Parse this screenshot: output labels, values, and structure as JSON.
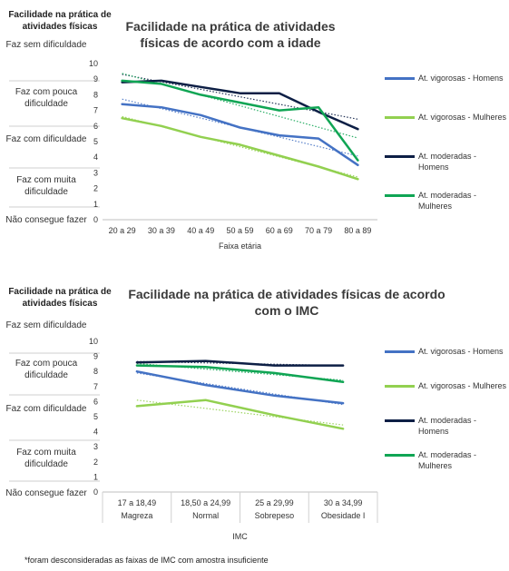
{
  "charts": [
    {
      "y_group_title": "Facilidade na prática de atividades físicas",
      "title": "Facilidade na prática de atividades físicas de acordo com a idade",
      "band_labels": [
        "Faz sem dificuldade",
        "Faz com pouca dificuldade",
        "Faz com dificuldade",
        "Faz com muita dificuldade",
        "Não consegue fazer"
      ],
      "xlabel": "Faixa etária",
      "legend": [
        "At. vigorosas - Homens",
        "At. vigorosas - Mulheres",
        "At. moderadas - Homens",
        "At. moderadas - Mulheres"
      ]
    },
    {
      "y_group_title": "Facilidade na prática de atividades físicas",
      "title": "Facilidade na prática de atividades físicas de acordo com o IMC",
      "band_labels": [
        "Faz sem dificuldade",
        "Faz com pouca dificuldade",
        "Faz com dificuldade",
        "Faz com muita dificuldade",
        "Não consegue fazer"
      ],
      "xlabel": "IMC",
      "legend": [
        "At. vigorosas - Homens",
        "At. vigorosas - Mulheres",
        "At. moderadas - Homens",
        "At. moderadas - Mulheres"
      ]
    }
  ],
  "footnote": "*foram desconsideradas as faixas de IMC com amostra insuficiente",
  "colors": {
    "vig_homens": "#4472c4",
    "vig_mulheres": "#92d050",
    "mod_homens": "#0d1f45",
    "mod_mulheres": "#10a554"
  },
  "chart_data": [
    {
      "type": "line",
      "title": "Facilidade na prática de atividades físicas de acordo com a idade",
      "xlabel": "Faixa etária",
      "ylabel": "Facilidade na prática de atividades físicas",
      "categories": [
        "20 a 29",
        "30 a 39",
        "40 a 49",
        "50 a 59",
        "60 a 69",
        "70 a 79",
        "80 a 89"
      ],
      "ylim": [
        0,
        10
      ],
      "yticks": [
        0,
        1,
        2,
        3,
        4,
        5,
        6,
        7,
        8,
        9,
        10
      ],
      "trendlines": true,
      "legend_position": "right",
      "series": [
        {
          "name": "At. vigorosas - Homens",
          "values": [
            7.4,
            7.2,
            6.7,
            5.9,
            5.4,
            5.2,
            3.5
          ]
        },
        {
          "name": "At. vigorosas - Mulheres",
          "values": [
            6.5,
            6.0,
            5.3,
            4.8,
            4.1,
            3.4,
            2.6
          ]
        },
        {
          "name": "At. moderadas - Homens",
          "values": [
            8.8,
            8.9,
            8.5,
            8.1,
            8.1,
            6.9,
            5.8
          ]
        },
        {
          "name": "At. moderadas - Mulheres",
          "values": [
            8.9,
            8.7,
            8.0,
            7.5,
            7.0,
            7.2,
            3.8
          ]
        }
      ]
    },
    {
      "type": "line",
      "title": "Facilidade na prática de atividades físicas de acordo com o IMC",
      "xlabel": "IMC",
      "ylabel": "Facilidade na prática de atividades físicas",
      "categories": [
        "17 a 18,49",
        "18,50 a 24,99",
        "25 a 29,99",
        "30 a 34,99"
      ],
      "category_sublabels": [
        "Magreza",
        "Normal",
        "Sobrepeso",
        "Obesidade I"
      ],
      "ylim": [
        0,
        10
      ],
      "yticks": [
        0,
        1,
        2,
        3,
        4,
        5,
        6,
        7,
        8,
        9,
        10
      ],
      "trendlines": true,
      "legend_position": "right",
      "series": [
        {
          "name": "At. vigorosas - Homens",
          "values": [
            8.0,
            7.1,
            6.4,
            5.9
          ]
        },
        {
          "name": "At. vigorosas - Mulheres",
          "values": [
            5.7,
            6.1,
            5.1,
            4.2
          ]
        },
        {
          "name": "At. moderadas - Homens",
          "values": [
            8.6,
            8.7,
            8.4,
            8.4
          ]
        },
        {
          "name": "At. moderadas - Mulheres",
          "values": [
            8.4,
            8.3,
            7.9,
            7.3
          ]
        }
      ]
    }
  ]
}
